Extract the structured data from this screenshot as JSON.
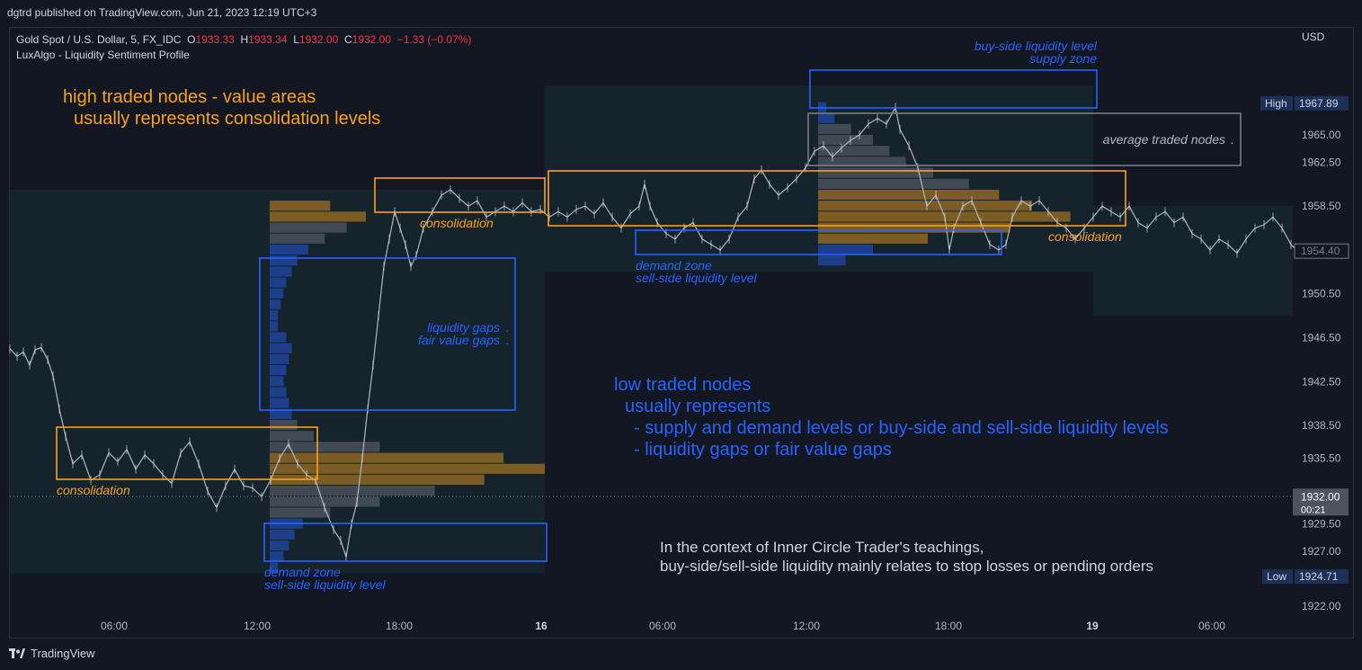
{
  "header": {
    "published": "dgtrd published on TradingView.com, Jun 21, 2023 12:19 UTC+3"
  },
  "legend": {
    "symbol": "Gold Spot / U.S. Dollar, 5, FX_IDC",
    "o_label": "O",
    "o_value": "1933.33",
    "h_label": "H",
    "h_value": "1933.34",
    "l_label": "L",
    "l_value": "1932.00",
    "c_label": "C",
    "c_value": "1932.00",
    "change": "−1.33 (−0.07%)",
    "indicator": "LuxAlgo - Liquidity Sentiment Profile"
  },
  "footer": {
    "brand": "TradingView"
  },
  "chart_data": {
    "type": "line",
    "currency": "USD",
    "y_ticks": [
      "1965.00",
      "1962.50",
      "1958.50",
      "1950.50",
      "1946.50",
      "1942.50",
      "1938.50",
      "1935.50",
      "1929.50",
      "1927.00",
      "1922.00"
    ],
    "ylim": [
      1920.0,
      1971.0
    ],
    "x_ticks": [
      "06:00",
      "12:00",
      "18:00",
      "16",
      "06:00",
      "12:00",
      "18:00",
      "19",
      "06:00"
    ],
    "price_markers": {
      "high": {
        "label": "High",
        "value": "1967.89"
      },
      "low": {
        "label": "Low",
        "value": "1924.71"
      },
      "last": {
        "value": "1954.40"
      },
      "current": {
        "value": "1932.00",
        "timer": "00:21"
      }
    },
    "price_path": [
      [
        0,
        1945.5
      ],
      [
        8,
        1944.8
      ],
      [
        15,
        1945.2
      ],
      [
        22,
        1944.0
      ],
      [
        28,
        1945.4
      ],
      [
        35,
        1945.6
      ],
      [
        42,
        1944.5
      ],
      [
        48,
        1943.0
      ],
      [
        55,
        1940.0
      ],
      [
        62,
        1937.5
      ],
      [
        70,
        1935.0
      ],
      [
        80,
        1935.8
      ],
      [
        90,
        1933.5
      ],
      [
        100,
        1934.0
      ],
      [
        110,
        1936.0
      ],
      [
        120,
        1935.2
      ],
      [
        130,
        1936.3
      ],
      [
        140,
        1934.5
      ],
      [
        150,
        1935.8
      ],
      [
        160,
        1935.0
      ],
      [
        170,
        1934.0
      ],
      [
        180,
        1933.2
      ],
      [
        190,
        1936.0
      ],
      [
        200,
        1937.0
      ],
      [
        210,
        1935.0
      ],
      [
        220,
        1932.5
      ],
      [
        230,
        1931.0
      ],
      [
        240,
        1933.0
      ],
      [
        250,
        1934.5
      ],
      [
        260,
        1933.0
      ],
      [
        270,
        1932.8
      ],
      [
        280,
        1932.0
      ],
      [
        290,
        1933.5
      ],
      [
        300,
        1935.5
      ],
      [
        310,
        1936.8
      ],
      [
        320,
        1935.0
      ],
      [
        330,
        1934.0
      ],
      [
        340,
        1933.5
      ],
      [
        350,
        1931.0
      ],
      [
        360,
        1929.0
      ],
      [
        368,
        1928.0
      ],
      [
        374,
        1926.5
      ],
      [
        380,
        1929.5
      ],
      [
        386,
        1931.5
      ],
      [
        392,
        1935.5
      ],
      [
        398,
        1940.0
      ],
      [
        404,
        1944.0
      ],
      [
        410,
        1948.5
      ],
      [
        416,
        1953.0
      ],
      [
        422,
        1955.5
      ],
      [
        428,
        1958.0
      ],
      [
        434,
        1956.5
      ],
      [
        440,
        1955.0
      ],
      [
        446,
        1953.0
      ],
      [
        452,
        1954.0
      ],
      [
        460,
        1956.5
      ],
      [
        470,
        1958.0
      ],
      [
        480,
        1959.5
      ],
      [
        490,
        1960.0
      ],
      [
        500,
        1959.2
      ],
      [
        510,
        1958.5
      ],
      [
        520,
        1959.0
      ],
      [
        530,
        1957.5
      ],
      [
        540,
        1958.0
      ],
      [
        550,
        1958.5
      ],
      [
        560,
        1958.0
      ],
      [
        570,
        1958.8
      ],
      [
        580,
        1958.0
      ],
      [
        590,
        1958.2
      ],
      [
        600,
        1957.5
      ],
      [
        610,
        1958.0
      ],
      [
        620,
        1957.5
      ],
      [
        630,
        1958.2
      ],
      [
        640,
        1958.5
      ],
      [
        650,
        1957.8
      ],
      [
        660,
        1958.8
      ],
      [
        670,
        1957.5
      ],
      [
        680,
        1956.5
      ],
      [
        690,
        1957.8
      ],
      [
        700,
        1958.5
      ],
      [
        706,
        1960.5
      ],
      [
        712,
        1958.5
      ],
      [
        720,
        1957.0
      ],
      [
        730,
        1956.0
      ],
      [
        740,
        1955.5
      ],
      [
        750,
        1956.5
      ],
      [
        760,
        1957.0
      ],
      [
        770,
        1955.5
      ],
      [
        780,
        1955.0
      ],
      [
        790,
        1954.5
      ],
      [
        800,
        1955.5
      ],
      [
        810,
        1957.5
      ],
      [
        820,
        1958.5
      ],
      [
        828,
        1961.0
      ],
      [
        836,
        1961.8
      ],
      [
        845,
        1960.5
      ],
      [
        855,
        1959.5
      ],
      [
        865,
        1960.2
      ],
      [
        875,
        1961.0
      ],
      [
        885,
        1962.0
      ],
      [
        895,
        1963.5
      ],
      [
        905,
        1964.0
      ],
      [
        915,
        1963.0
      ],
      [
        925,
        1963.8
      ],
      [
        935,
        1964.5
      ],
      [
        945,
        1965.0
      ],
      [
        955,
        1966.0
      ],
      [
        965,
        1966.5
      ],
      [
        975,
        1966.0
      ],
      [
        985,
        1967.5
      ],
      [
        990,
        1965.5
      ],
      [
        1000,
        1964.0
      ],
      [
        1010,
        1962.0
      ],
      [
        1020,
        1958.5
      ],
      [
        1030,
        1959.5
      ],
      [
        1040,
        1957.5
      ],
      [
        1045,
        1954.5
      ],
      [
        1050,
        1956.5
      ],
      [
        1060,
        1958.5
      ],
      [
        1070,
        1959.0
      ],
      [
        1080,
        1957.0
      ],
      [
        1090,
        1955.0
      ],
      [
        1100,
        1954.5
      ],
      [
        1108,
        1955.0
      ],
      [
        1115,
        1957.5
      ],
      [
        1125,
        1959.0
      ],
      [
        1135,
        1958.5
      ],
      [
        1145,
        1959.0
      ],
      [
        1155,
        1958.0
      ],
      [
        1165,
        1957.0
      ],
      [
        1175,
        1956.5
      ],
      [
        1185,
        1955.5
      ],
      [
        1195,
        1956.5
      ],
      [
        1205,
        1957.5
      ],
      [
        1215,
        1958.5
      ],
      [
        1225,
        1958.0
      ],
      [
        1235,
        1957.5
      ],
      [
        1245,
        1958.5
      ],
      [
        1255,
        1957.0
      ],
      [
        1265,
        1956.5
      ],
      [
        1275,
        1957.5
      ],
      [
        1285,
        1958.0
      ],
      [
        1295,
        1957.0
      ],
      [
        1305,
        1957.5
      ],
      [
        1315,
        1956.0
      ],
      [
        1325,
        1955.5
      ],
      [
        1335,
        1954.5
      ],
      [
        1345,
        1955.5
      ],
      [
        1355,
        1955.0
      ],
      [
        1365,
        1954.2
      ],
      [
        1375,
        1955.5
      ],
      [
        1385,
        1956.5
      ],
      [
        1395,
        1956.8
      ],
      [
        1405,
        1957.5
      ],
      [
        1415,
        1956.5
      ],
      [
        1425,
        1955.0
      ],
      [
        1432,
        1954.4
      ]
    ],
    "profiles": [
      {
        "x_from": "12:00 (day 1)",
        "x_to": "16",
        "bins": [
          {
            "price": 1958.5,
            "len": 0.22,
            "kind": "high"
          },
          {
            "price": 1957.5,
            "len": 0.35,
            "kind": "high"
          },
          {
            "price": 1956.5,
            "len": 0.28,
            "kind": "avg"
          },
          {
            "price": 1955.5,
            "len": 0.2,
            "kind": "avg"
          },
          {
            "price": 1954.5,
            "len": 0.14,
            "kind": "low"
          },
          {
            "price": 1953.5,
            "len": 0.1,
            "kind": "low"
          },
          {
            "price": 1952.5,
            "len": 0.08,
            "kind": "low"
          },
          {
            "price": 1951.5,
            "len": 0.06,
            "kind": "low"
          },
          {
            "price": 1950.5,
            "len": 0.05,
            "kind": "low"
          },
          {
            "price": 1949.5,
            "len": 0.04,
            "kind": "low"
          },
          {
            "price": 1948.5,
            "len": 0.03,
            "kind": "low"
          },
          {
            "price": 1947.5,
            "len": 0.03,
            "kind": "low"
          },
          {
            "price": 1946.5,
            "len": 0.06,
            "kind": "low"
          },
          {
            "price": 1945.5,
            "len": 0.08,
            "kind": "low"
          },
          {
            "price": 1944.5,
            "len": 0.07,
            "kind": "low"
          },
          {
            "price": 1943.5,
            "len": 0.06,
            "kind": "low"
          },
          {
            "price": 1942.5,
            "len": 0.05,
            "kind": "low"
          },
          {
            "price": 1941.5,
            "len": 0.06,
            "kind": "low"
          },
          {
            "price": 1940.5,
            "len": 0.07,
            "kind": "low"
          },
          {
            "price": 1939.5,
            "len": 0.08,
            "kind": "low"
          },
          {
            "price": 1938.5,
            "len": 0.1,
            "kind": "avg"
          },
          {
            "price": 1937.5,
            "len": 0.16,
            "kind": "avg"
          },
          {
            "price": 1936.5,
            "len": 0.4,
            "kind": "avg"
          },
          {
            "price": 1935.5,
            "len": 0.85,
            "kind": "high"
          },
          {
            "price": 1934.5,
            "len": 1.0,
            "kind": "high"
          },
          {
            "price": 1933.5,
            "len": 0.78,
            "kind": "high"
          },
          {
            "price": 1932.5,
            "len": 0.6,
            "kind": "avg"
          },
          {
            "price": 1931.5,
            "len": 0.4,
            "kind": "avg"
          },
          {
            "price": 1930.5,
            "len": 0.22,
            "kind": "avg"
          },
          {
            "price": 1929.5,
            "len": 0.12,
            "kind": "low"
          },
          {
            "price": 1928.5,
            "len": 0.09,
            "kind": "low"
          },
          {
            "price": 1927.5,
            "len": 0.07,
            "kind": "low"
          },
          {
            "price": 1926.5,
            "len": 0.05,
            "kind": "low"
          },
          {
            "price": 1925.5,
            "len": 0.03,
            "kind": "low"
          }
        ]
      },
      {
        "x_from": "12:00 (day 2)",
        "x_to": "19",
        "bins": [
          {
            "price": 1967.5,
            "len": 0.03,
            "kind": "low"
          },
          {
            "price": 1966.5,
            "len": 0.06,
            "kind": "low"
          },
          {
            "price": 1965.5,
            "len": 0.12,
            "kind": "avg"
          },
          {
            "price": 1964.5,
            "len": 0.2,
            "kind": "avg"
          },
          {
            "price": 1963.5,
            "len": 0.26,
            "kind": "avg"
          },
          {
            "price": 1962.5,
            "len": 0.32,
            "kind": "avg"
          },
          {
            "price": 1961.5,
            "len": 0.42,
            "kind": "avg"
          },
          {
            "price": 1960.5,
            "len": 0.55,
            "kind": "avg"
          },
          {
            "price": 1959.5,
            "len": 0.66,
            "kind": "high"
          },
          {
            "price": 1958.5,
            "len": 0.78,
            "kind": "high"
          },
          {
            "price": 1957.5,
            "len": 0.92,
            "kind": "high"
          },
          {
            "price": 1956.5,
            "len": 0.7,
            "kind": "high"
          },
          {
            "price": 1955.5,
            "len": 0.4,
            "kind": "high"
          },
          {
            "price": 1954.5,
            "len": 0.2,
            "kind": "low"
          },
          {
            "price": 1953.5,
            "len": 0.1,
            "kind": "low"
          }
        ]
      }
    ]
  },
  "annotations": {
    "high_nodes_title": "high traded nodes - value areas",
    "high_nodes_sub": "usually represents consolidation levels",
    "low_nodes_title": "low traded nodes",
    "low_nodes_sub": "usually represents",
    "low_nodes_b1": "- supply and demand levels or buy-side and sell-side liquidity levels",
    "low_nodes_b2": "- liquidity gaps or fair value gaps",
    "ict_line1": "In the context of Inner Circle Trader's teachings,",
    "ict_line2": "buy-side/sell-side liquidity mainly relates to stop losses or pending orders",
    "consolidation": "consolidation",
    "demand_zone": "demand zone",
    "sell_side": "sell-side liquidity level",
    "buy_side": "buy-side liquidity level",
    "supply_zone": "supply zone",
    "liq_gaps": "liquidity gaps",
    "fvg": "fair value gaps",
    "avg_nodes": "average traded nodes",
    "dot": "."
  },
  "colors": {
    "bg": "#131722",
    "orange": "#f7a21b",
    "blue": "#2962ff",
    "gray": "#787b86",
    "text": "#d1d4dc",
    "red": "#f23645"
  }
}
